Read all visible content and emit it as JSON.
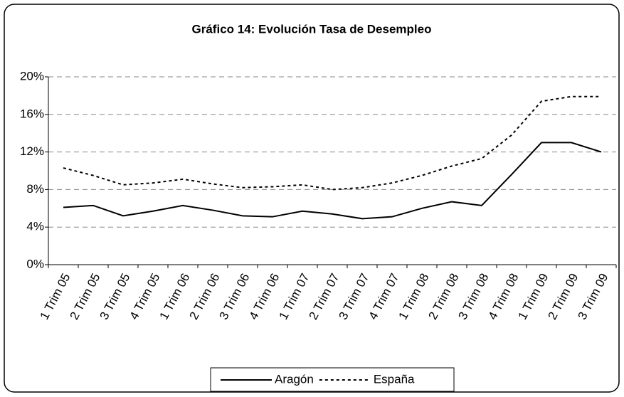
{
  "chart_data": {
    "type": "line",
    "title": "Gráfico 14: Evolución Tasa de Desempleo",
    "categories": [
      "1 Trim 05",
      "2 Trim 05",
      "3 Trim 05",
      "4 Trim 05",
      "1 Trim 06",
      "2 Trim 06",
      "3 Trim 06",
      "4 Trim 06",
      "1 Trim 07",
      "2 Trim 07",
      "3 Trim 07",
      "4 Trim 07",
      "1 Trim 08",
      "2 Trim 08",
      "3 Trim 08",
      "4 Trim 08",
      "1 Trim 09",
      "2 Trim 09",
      "3 Trim 09"
    ],
    "series": [
      {
        "name": "Aragón",
        "color": "#000000",
        "dash": "solid",
        "values": [
          6.1,
          6.3,
          5.2,
          5.7,
          6.3,
          5.8,
          5.2,
          5.1,
          5.7,
          5.4,
          4.9,
          5.1,
          6.0,
          6.7,
          6.3,
          9.6,
          13.0,
          13.0,
          12.0
        ]
      },
      {
        "name": "España",
        "color": "#000000",
        "dash": "dashed",
        "values": [
          10.3,
          9.5,
          8.5,
          8.7,
          9.1,
          8.6,
          8.2,
          8.3,
          8.5,
          8.0,
          8.2,
          8.7,
          9.5,
          10.5,
          11.3,
          13.8,
          17.4,
          17.9,
          17.9
        ]
      }
    ],
    "ylim": [
      0,
      20
    ],
    "yticks": [
      {
        "value": 0,
        "label": "0%"
      },
      {
        "value": 4,
        "label": "4%"
      },
      {
        "value": 8,
        "label": "8%"
      },
      {
        "value": 12,
        "label": "12%"
      },
      {
        "value": 16,
        "label": "16%"
      },
      {
        "value": 20,
        "label": "20%"
      }
    ],
    "grid": true,
    "legend": "bottom"
  }
}
